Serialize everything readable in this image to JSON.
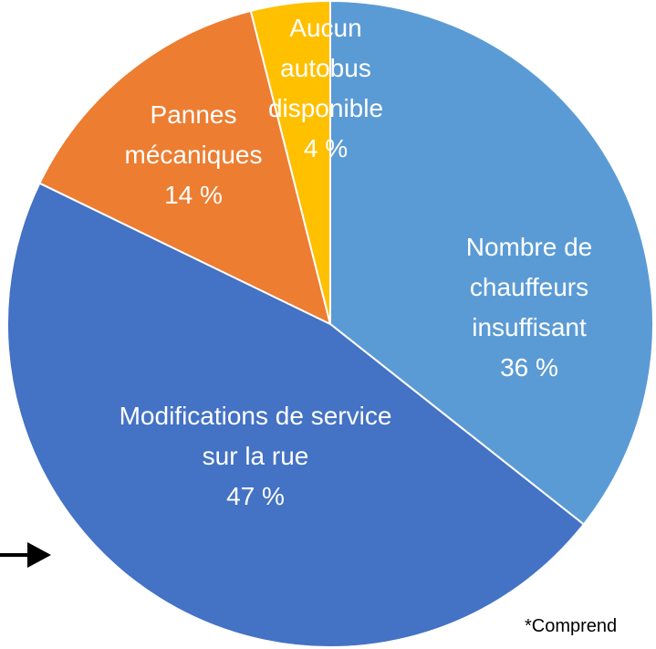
{
  "chart_data": {
    "type": "pie",
    "categories": [
      "Nombre de chauffeurs insuffisant",
      "Modifications de service sur la rue",
      "Pannes mécaniques",
      "Aucun autobus disponible"
    ],
    "values": [
      36,
      47,
      14,
      4
    ],
    "value_labels": [
      "36 %",
      "47 %",
      "14 %",
      "4 %"
    ],
    "colors": [
      "#5b9bd5",
      "#4472c4",
      "#ed7d31",
      "#ffc000"
    ],
    "note": "*Comprend"
  }
}
